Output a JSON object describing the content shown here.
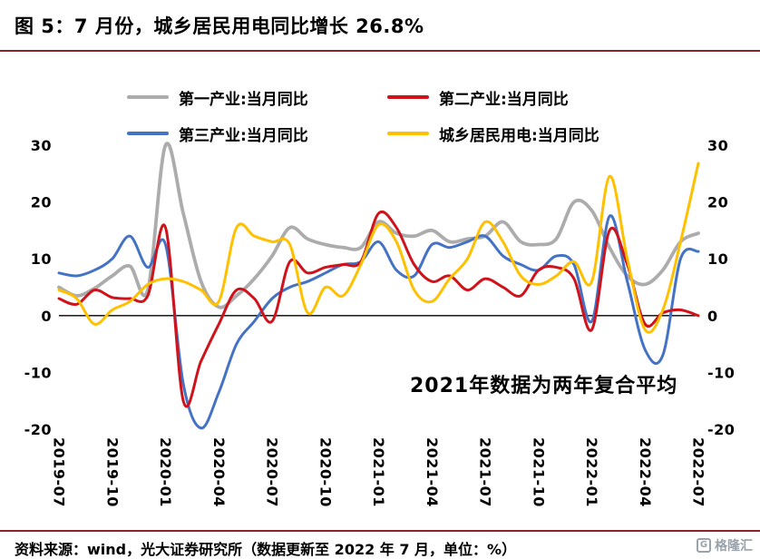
{
  "header": {
    "title": "图 5：7 月份，城乡居民用电同比增长 26.8%"
  },
  "colors": {
    "accent_rule": "#8e1f2c",
    "axis_line": "#000000",
    "text": "#000000",
    "logo_gray": "#9aa3ab"
  },
  "chart_data": {
    "type": "line",
    "note": "2021年数据为两年复合平均",
    "ylim": [
      -20,
      30
    ],
    "y_ticks": [
      30,
      20,
      10,
      0,
      -10,
      -20
    ],
    "x_tick_every": 3,
    "grid": false,
    "legend_position": "top",
    "draw_order": [
      0,
      2,
      1,
      3
    ],
    "x": [
      "2019-07",
      "2019-08",
      "2019-09",
      "2019-10",
      "2019-11",
      "2019-12",
      "2020-01",
      "2020-02",
      "2020-03",
      "2020-04",
      "2020-05",
      "2020-06",
      "2020-07",
      "2020-08",
      "2020-09",
      "2020-10",
      "2020-11",
      "2020-12",
      "2021-01",
      "2021-02",
      "2021-03",
      "2021-04",
      "2021-05",
      "2021-06",
      "2021-07",
      "2021-08",
      "2021-09",
      "2021-10",
      "2021-11",
      "2021-12",
      "2022-01",
      "2022-02",
      "2022-03",
      "2022-04",
      "2022-05",
      "2022-06",
      "2022-07"
    ],
    "series": [
      {
        "id": "primary-industry",
        "name": "第一产业:当月同比",
        "color": "#ACACAC",
        "width": 3.8,
        "values": [
          5.0,
          3.5,
          4.8,
          7.0,
          8.7,
          4.5,
          30.0,
          18.0,
          6.0,
          1.5,
          3.5,
          6.5,
          10.5,
          15.5,
          13.5,
          12.5,
          12.0,
          12.0,
          16.5,
          14.5,
          14.0,
          15.0,
          13.0,
          13.5,
          14.0,
          16.5,
          13.0,
          12.5,
          13.5,
          20.0,
          18.5,
          12.0,
          7.0,
          5.5,
          8.0,
          13.0,
          14.5
        ]
      },
      {
        "id": "secondary-industry",
        "name": "第二产业:当月同比",
        "color": "#d0121b",
        "width": 3,
        "values": [
          3.0,
          2.0,
          4.5,
          3.2,
          3.0,
          3.5,
          15.5,
          -15.0,
          -8.0,
          -1.5,
          4.5,
          3.0,
          -1.0,
          9.5,
          7.5,
          8.5,
          9.0,
          9.5,
          18.0,
          15.5,
          9.0,
          6.0,
          7.0,
          4.5,
          6.5,
          5.0,
          3.5,
          8.0,
          8.5,
          6.5,
          -2.5,
          15.0,
          9.0,
          -1.5,
          0.5,
          1.0,
          0.0
        ]
      },
      {
        "id": "tertiary-industry",
        "name": "第三产业:当月同比",
        "color": "#4472C4",
        "width": 3,
        "values": [
          7.5,
          7.0,
          8.0,
          10.0,
          14.0,
          8.5,
          12.5,
          -12.0,
          -19.8,
          -13.5,
          -5.0,
          -1.0,
          3.0,
          5.0,
          6.0,
          7.5,
          9.0,
          9.5,
          13.0,
          8.0,
          7.0,
          12.5,
          12.0,
          13.0,
          14.0,
          10.5,
          9.0,
          8.0,
          10.5,
          9.0,
          -1.0,
          17.5,
          6.0,
          -6.0,
          -7.0,
          10.0,
          11.3
        ]
      },
      {
        "id": "residential-electricity",
        "name": "城乡居民用电:当月同比",
        "color": "#FFC000",
        "width": 3,
        "values": [
          4.5,
          3.0,
          -1.5,
          1.0,
          2.5,
          5.5,
          6.5,
          6.0,
          4.5,
          2.5,
          15.5,
          14.0,
          13.0,
          12.5,
          0.5,
          5.0,
          3.5,
          9.0,
          16.0,
          13.0,
          4.5,
          2.5,
          6.5,
          10.0,
          16.5,
          13.0,
          7.0,
          5.5,
          7.0,
          9.5,
          6.0,
          24.5,
          10.0,
          -2.5,
          1.0,
          13.0,
          26.8
        ]
      }
    ]
  },
  "footer": {
    "source": "资料来源：wind，光大证券研究所（数据更新至 2022 年 7 月，单位：%）",
    "logo_icon": "G",
    "logo_text": "格隆汇"
  }
}
